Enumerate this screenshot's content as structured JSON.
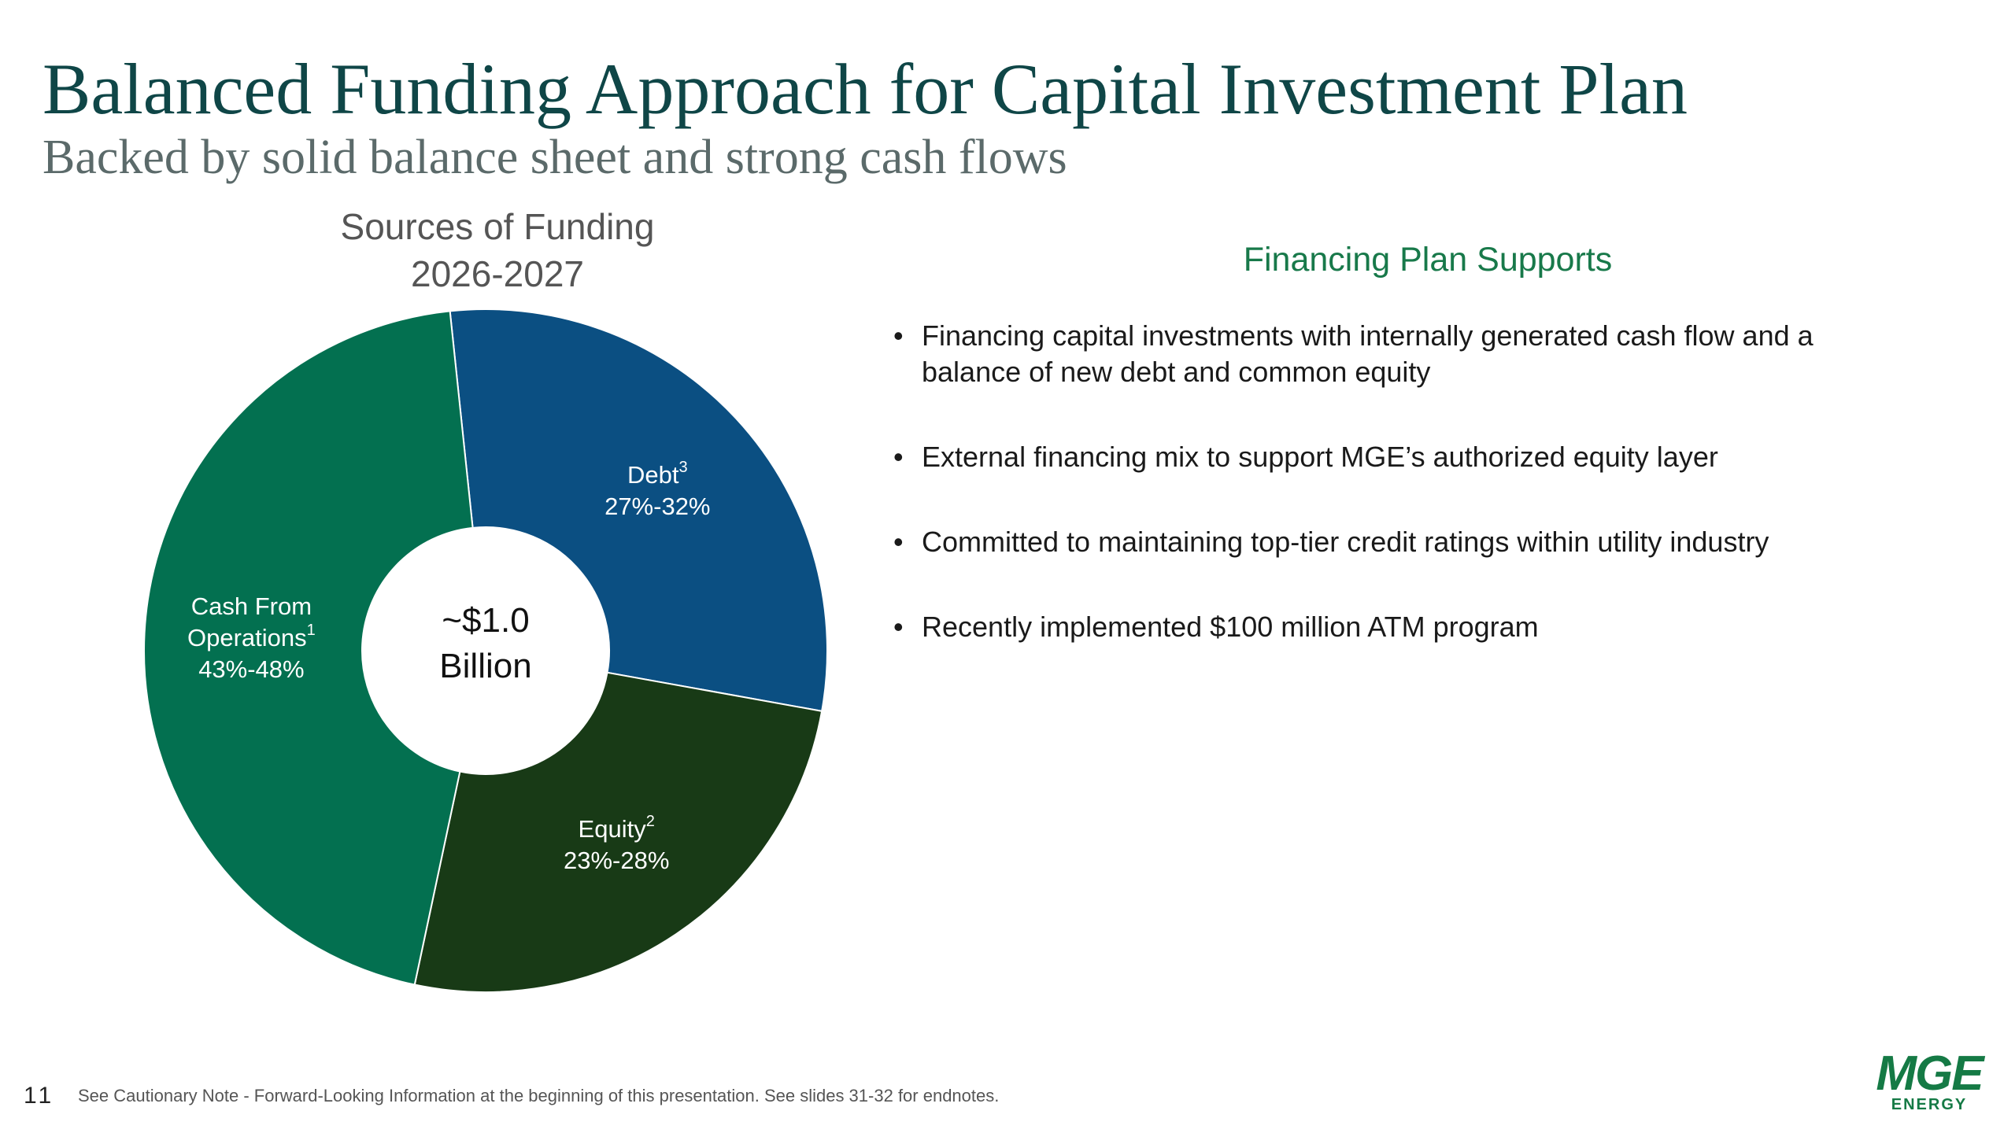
{
  "title": "Balanced Funding Approach for Capital Investment Plan",
  "subtitle": "Backed by solid balance sheet and strong cash flows",
  "chart_data": {
    "type": "donut",
    "title": [
      "Sources of Funding",
      "2026-2027"
    ],
    "categories": [
      "Debt",
      "Equity",
      "Cash From Operations"
    ],
    "footnotes": [
      "3",
      "2",
      "1"
    ],
    "values": [
      29.5,
      25.5,
      45
    ],
    "value_labels": [
      "27%-32%",
      "23%-28%",
      "43%-48%"
    ],
    "colors": [
      "#0b4f82",
      "#183a16",
      "#037050"
    ],
    "center_label": [
      "~$1.0",
      "Billion"
    ]
  },
  "panel": {
    "heading": "Financing Plan Supports",
    "bullets": [
      "Financing capital investments with internally generated cash flow and a balance of new debt and common equity",
      "External financing mix to support MGE’s authorized equity layer",
      "Committed to maintaining top-tier credit ratings within utility industry",
      "Recently implemented $100 million ATM program"
    ]
  },
  "footer": {
    "page_number": "11",
    "note": "See Cautionary Note - Forward-Looking Information at the beginning of this presentation. See slides 31-32 for endnotes.",
    "logo": [
      "MGE",
      "ENERGY"
    ]
  }
}
